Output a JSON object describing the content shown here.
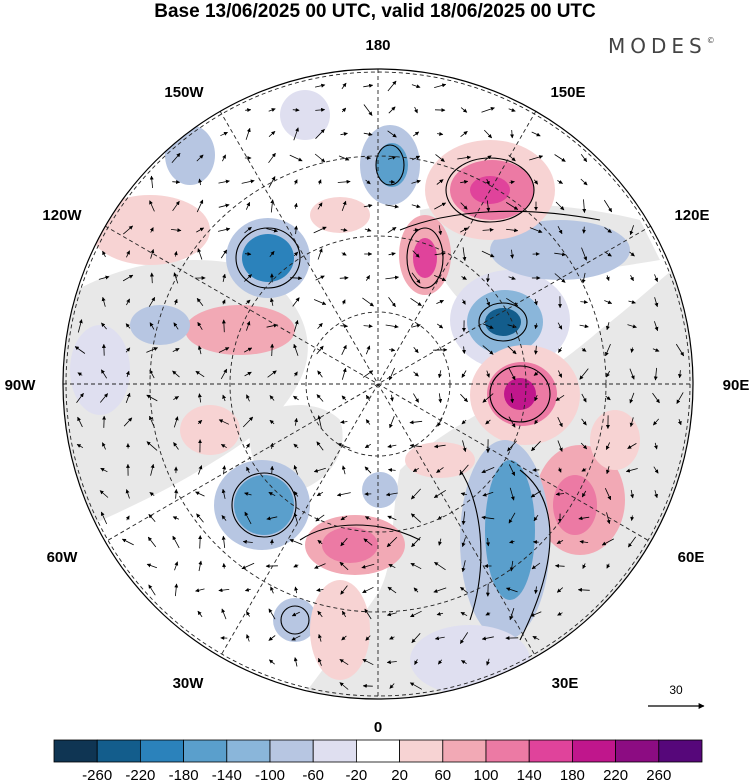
{
  "title": "Base 13/06/2025 00 UTC, valid 18/06/2025 00 UTC",
  "brand": "MODES",
  "brand_mark": "©",
  "longitude_labels": [
    "180",
    "150E",
    "120E",
    "90E",
    "60E",
    "30E",
    "0",
    "30W",
    "60W",
    "90W",
    "120W",
    "150W"
  ],
  "vector_reference": {
    "value": "30"
  },
  "colorbar": {
    "labels": [
      "-260",
      "-220",
      "-180",
      "-140",
      "-100",
      "-60",
      "-20",
      "20",
      "60",
      "100",
      "140",
      "180",
      "220",
      "260"
    ],
    "colors": [
      "#0f3553",
      "#135d8c",
      "#2b82bb",
      "#5a9fcc",
      "#8ab6da",
      "#b7c6e2",
      "#dfdff0",
      "#ffffff",
      "#f7d3d3",
      "#f2a9b5",
      "#ec7aa4",
      "#e0439b",
      "#c0168c",
      "#8c0c82",
      "#56077a"
    ]
  },
  "anomaly_colors": {
    "negative_light": "#dfdff0",
    "negative_mid": "#8ab6da",
    "negative_strong": "#2b82bb",
    "positive_light": "#f7d3d3",
    "positive_mid": "#ec7aa4",
    "positive_strong": "#c0168c",
    "land": "#e8e8e8"
  }
}
